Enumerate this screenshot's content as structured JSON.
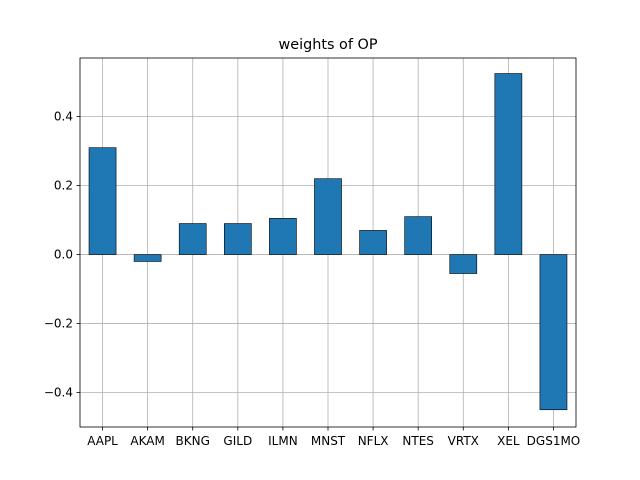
{
  "chart_data": {
    "type": "bar",
    "title": "weights of OP",
    "xlabel": "",
    "ylabel": "",
    "categories": [
      "AAPL",
      "AKAM",
      "BKNG",
      "GILD",
      "ILMN",
      "MNST",
      "NFLX",
      "NTES",
      "VRTX",
      "XEL",
      "DGS1MO"
    ],
    "values": [
      0.31,
      -0.02,
      0.09,
      0.09,
      0.105,
      0.22,
      0.07,
      0.11,
      -0.055,
      0.525,
      -0.45
    ],
    "ylim": [
      -0.5,
      0.57
    ],
    "yticks": [
      -0.4,
      -0.2,
      0.0,
      0.2,
      0.4
    ],
    "ytick_labels": [
      "−0.4",
      "−0.2",
      "0.0",
      "0.2",
      "0.4"
    ],
    "grid": true,
    "bar_color": "#1f77b4",
    "bar_edge_color": "#000000"
  }
}
